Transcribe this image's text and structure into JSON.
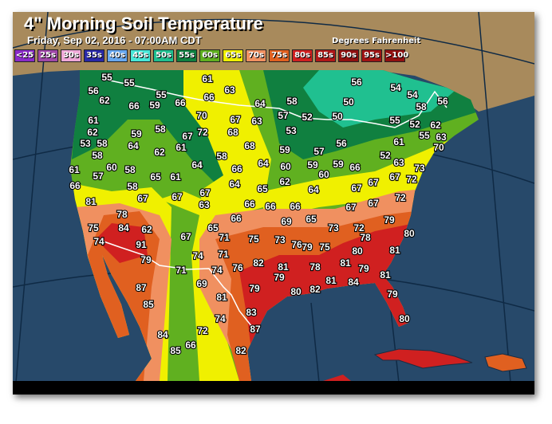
{
  "header": {
    "title": "4\" Morning Soil Temperature",
    "subtitle": "Friday, Sep 02, 2016 - 07:00AM CDT",
    "units": "Degrees Fahrenheit"
  },
  "legend": [
    {
      "label": "<25",
      "color": "#8a2bc8"
    },
    {
      "label": "25s",
      "color": "#a048a8"
    },
    {
      "label": "30s",
      "color": "#f0a8d8"
    },
    {
      "label": "35s",
      "color": "#2828a8"
    },
    {
      "label": "40s",
      "color": "#68a8f0"
    },
    {
      "label": "45s",
      "color": "#48e8d8"
    },
    {
      "label": "50s",
      "color": "#20c090"
    },
    {
      "label": "55s",
      "color": "#108040"
    },
    {
      "label": "60s",
      "color": "#60b020"
    },
    {
      "label": "65s",
      "color": "#f0f000"
    },
    {
      "label": "70s",
      "color": "#f09060"
    },
    {
      "label": "75s",
      "color": "#e06020"
    },
    {
      "label": "80s",
      "color": "#d02020"
    },
    {
      "label": "85s",
      "color": "#b01818"
    },
    {
      "label": "90s",
      "color": "#901010"
    },
    {
      "label": "95s",
      "color": "#a01414"
    },
    {
      "label": ">100",
      "color": "#901010"
    }
  ],
  "colors": {
    "ocean": "#27496a",
    "canada": "#a88a5c",
    "border": "#ffffff"
  },
  "stations": [
    "55",
    "55",
    "56",
    "62",
    "55",
    "59",
    "66",
    "66",
    "61",
    "63",
    "66",
    "64",
    "58",
    "50",
    "54",
    "54",
    "58",
    "56",
    "56",
    "61",
    "62",
    "58",
    "53",
    "70",
    "72",
    "67",
    "63",
    "68",
    "57",
    "52",
    "50",
    "59",
    "64",
    "58",
    "67",
    "61",
    "62",
    "68",
    "58",
    "64",
    "66",
    "59",
    "53",
    "57",
    "56",
    "55",
    "52",
    "61",
    "52",
    "58",
    "60",
    "58",
    "57",
    "65",
    "61",
    "61",
    "66",
    "64",
    "60",
    "62",
    "59",
    "60",
    "59",
    "66",
    "62",
    "63",
    "55",
    "70",
    "73",
    "72",
    "63",
    "67",
    "67",
    "64",
    "67",
    "65",
    "64",
    "67",
    "63",
    "67",
    "67",
    "58",
    "81",
    "78",
    "84",
    "62",
    "66",
    "66",
    "66",
    "66",
    "69",
    "65",
    "67",
    "67",
    "72",
    "79",
    "73",
    "72",
    "78",
    "80",
    "75",
    "74",
    "91",
    "79",
    "67",
    "65",
    "71",
    "75",
    "73",
    "76",
    "71",
    "74",
    "76",
    "82",
    "81",
    "79",
    "75",
    "80",
    "81",
    "71",
    "74",
    "69",
    "81",
    "79",
    "79",
    "80",
    "82",
    "78",
    "81",
    "79",
    "81",
    "84",
    "81",
    "79",
    "80",
    "87",
    "85",
    "83",
    "87",
    "74",
    "72",
    "84",
    "66",
    "85",
    "82"
  ]
}
